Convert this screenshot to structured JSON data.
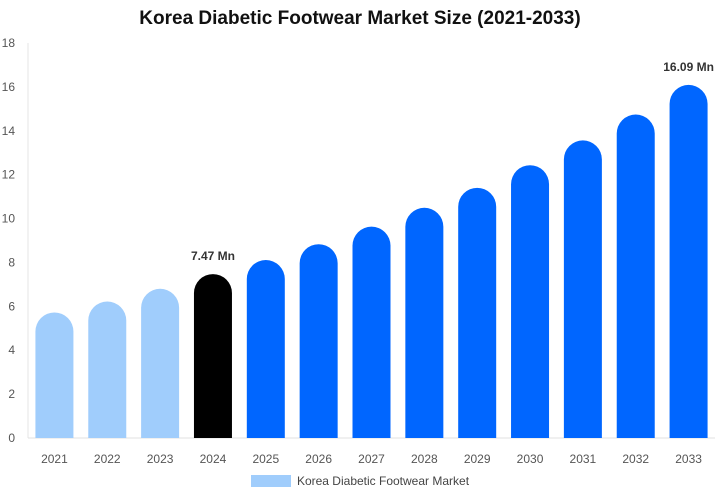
{
  "chart_data": {
    "type": "bar",
    "title": "Korea Diabetic Footwear Market Size (2021-2033)",
    "categories": [
      "2021",
      "2022",
      "2023",
      "2024",
      "2025",
      "2026",
      "2027",
      "2028",
      "2029",
      "2030",
      "2031",
      "2032",
      "2033"
    ],
    "series": [
      {
        "name": "Korea Diabetic Footwear Market",
        "values": [
          5.72,
          6.22,
          6.8,
          7.47,
          8.11,
          8.83,
          9.63,
          10.49,
          11.4,
          12.43,
          13.56,
          14.74,
          16.09
        ]
      }
    ],
    "bar_colors": [
      "#a0cdfc",
      "#a0cdfc",
      "#a0cdfc",
      "#000000",
      "#0066ff",
      "#0066ff",
      "#0066ff",
      "#0066ff",
      "#0066ff",
      "#0066ff",
      "#0066ff",
      "#0066ff",
      "#0066ff"
    ],
    "data_labels": [
      {
        "category": "2024",
        "text": "7.47 Mn"
      },
      {
        "category": "2033",
        "text": "16.09 Mn"
      }
    ],
    "ylim": [
      0,
      18
    ],
    "yticks": [
      "0",
      "2",
      "4",
      "6",
      "8",
      "10",
      "12",
      "14",
      "16",
      "18"
    ],
    "xlabel": "",
    "ylabel": "",
    "grid": false,
    "legend_position": "bottom"
  }
}
